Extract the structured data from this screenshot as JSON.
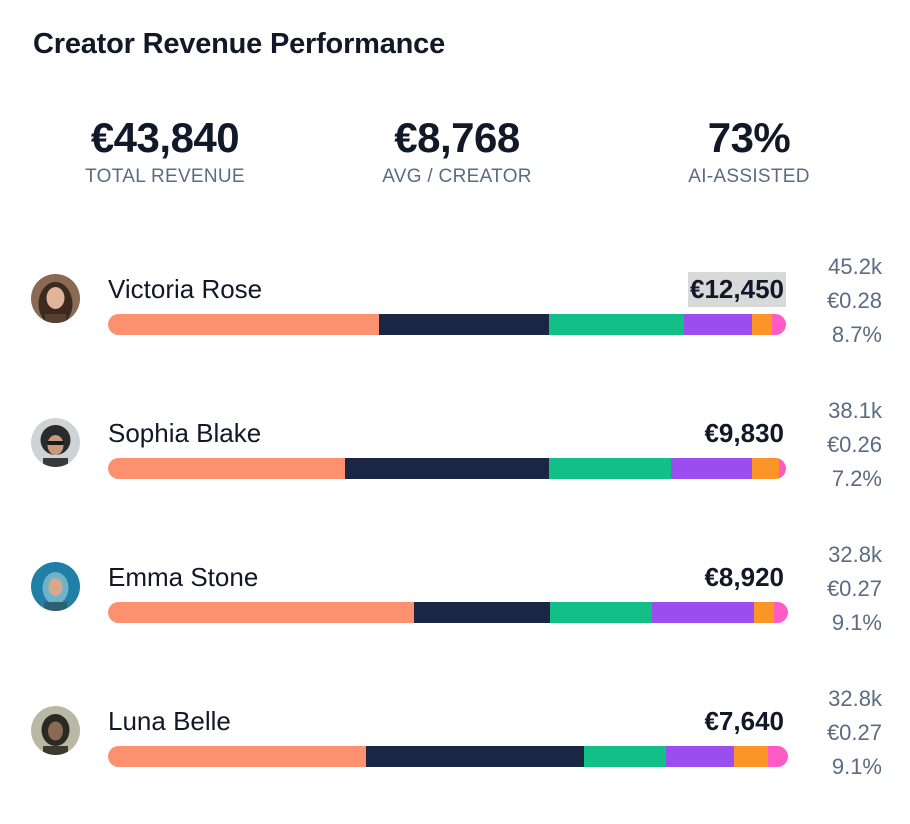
{
  "title": "Creator Revenue Performance",
  "stats": [
    {
      "value": "€43,840",
      "label": "TOTAL REVENUE"
    },
    {
      "value": "€8,768",
      "label": "AVG / CREATOR"
    },
    {
      "value": "73%",
      "label": "AI-ASSISTED"
    }
  ],
  "segment_colors": [
    "#fb916f",
    "#1b2645",
    "#12bf86",
    "#9b4df0",
    "#fc9527",
    "#ff5bc6"
  ],
  "creators": [
    {
      "name": "Victoria Rose",
      "revenue": "€12,450",
      "highlighted": true,
      "avatar_icon": "avatar-photo-icon",
      "shares": [
        40,
        25,
        20,
        10,
        3,
        2
      ],
      "followers": "45.2k",
      "rate": "€0.28",
      "engagement": "8.7%"
    },
    {
      "name": "Sophia Blake",
      "revenue": "€9,830",
      "highlighted": false,
      "avatar_icon": "avatar-photo-icon",
      "shares": [
        35,
        30,
        18,
        12,
        4,
        1
      ],
      "followers": "38.1k",
      "rate": "€0.26",
      "engagement": "7.2%"
    },
    {
      "name": "Emma Stone",
      "revenue": "€8,920",
      "highlighted": false,
      "avatar_icon": "avatar-photo-icon",
      "shares": [
        45,
        20,
        15,
        15,
        3,
        2
      ],
      "followers": "32.8k",
      "rate": "€0.27",
      "engagement": "9.1%"
    },
    {
      "name": "Luna Belle",
      "revenue": "€7,640",
      "highlighted": false,
      "avatar_icon": "avatar-photo-icon",
      "shares": [
        38,
        32,
        12,
        10,
        5,
        3
      ],
      "followers": "32.8k",
      "rate": "€0.27",
      "engagement": "9.1%"
    }
  ]
}
